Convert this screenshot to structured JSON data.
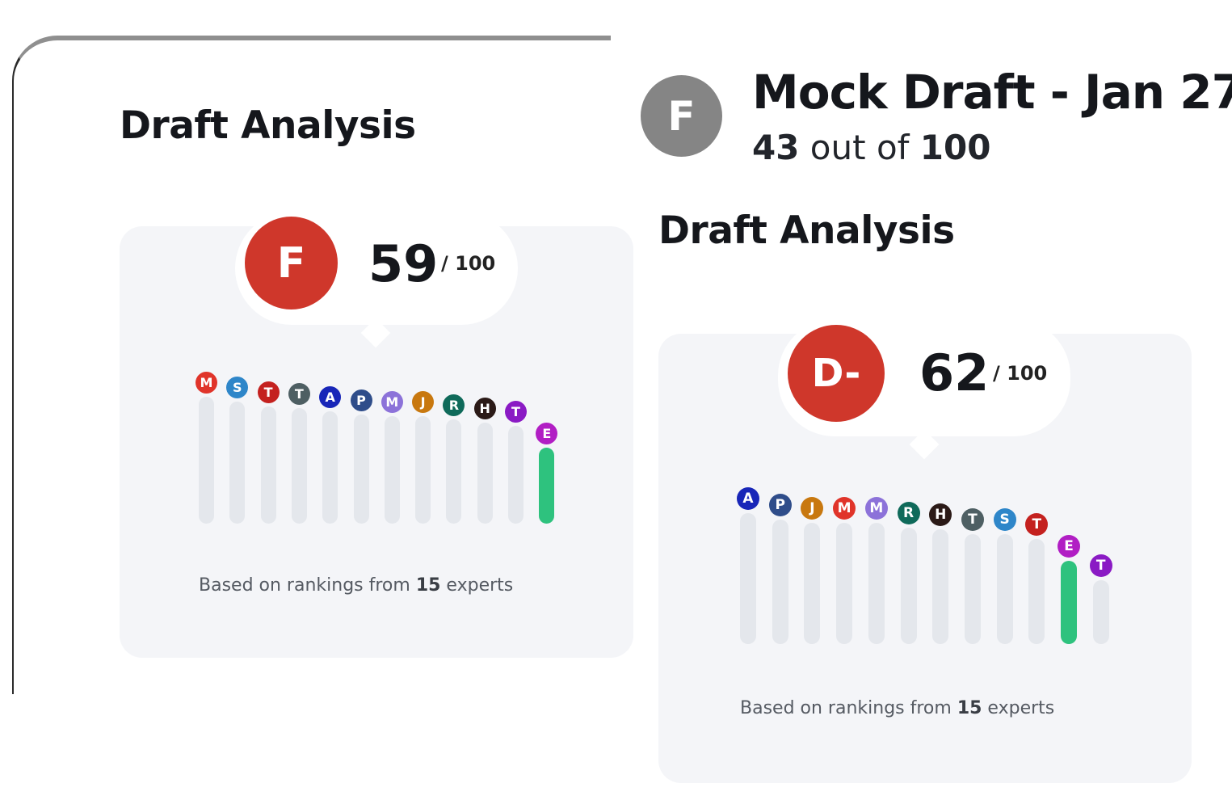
{
  "left_panel": {
    "section_title": "Draft Analysis",
    "grade": "F",
    "score": "59",
    "score_max": "/ 100",
    "footnote_prefix": "Based on rankings from ",
    "footnote_count": "15",
    "footnote_suffix": " experts",
    "bars": [
      {
        "letter": "M",
        "color": "#e0342a",
        "fill": 0
      },
      {
        "letter": "S",
        "color": "#2e86c9",
        "fill": 0
      },
      {
        "letter": "T",
        "color": "#c4211f",
        "fill": 0
      },
      {
        "letter": "T",
        "color": "#4e5f63",
        "fill": 0
      },
      {
        "letter": "A",
        "color": "#1826b8",
        "fill": 0
      },
      {
        "letter": "P",
        "color": "#2f4d8a",
        "fill": 0
      },
      {
        "letter": "M",
        "color": "#8c72d9",
        "fill": 0
      },
      {
        "letter": "J",
        "color": "#c8780f",
        "fill": 0
      },
      {
        "letter": "R",
        "color": "#0f6a5a",
        "fill": 0
      },
      {
        "letter": "H",
        "color": "#2b1a17",
        "fill": 0
      },
      {
        "letter": "T",
        "color": "#8a1ac4",
        "fill": 0
      },
      {
        "letter": "E",
        "color": "#b11ec4",
        "fill": 1
      }
    ]
  },
  "right_panel": {
    "avatar_letter": "F",
    "title": "Mock Draft - Jan 27",
    "sub_score": "43",
    "sub_text": " out of ",
    "sub_max": "100",
    "section_title": "Draft Analysis",
    "grade": "D-",
    "score": "62",
    "score_max": "/ 100",
    "footnote_prefix": "Based on rankings from ",
    "footnote_count": "15",
    "footnote_suffix": " experts",
    "bars": [
      {
        "letter": "A",
        "color": "#1826b8",
        "fill": 0
      },
      {
        "letter": "P",
        "color": "#2f4d8a",
        "fill": 0
      },
      {
        "letter": "J",
        "color": "#c8780f",
        "fill": 0
      },
      {
        "letter": "M",
        "color": "#e0342a",
        "fill": 0
      },
      {
        "letter": "M",
        "color": "#8c72d9",
        "fill": 0
      },
      {
        "letter": "R",
        "color": "#0f6a5a",
        "fill": 0
      },
      {
        "letter": "H",
        "color": "#2b1a17",
        "fill": 0
      },
      {
        "letter": "T",
        "color": "#4e5f63",
        "fill": 0
      },
      {
        "letter": "S",
        "color": "#2e86c9",
        "fill": 0
      },
      {
        "letter": "T",
        "color": "#c4211f",
        "fill": 0
      },
      {
        "letter": "E",
        "color": "#b11ec4",
        "fill": 1
      },
      {
        "letter": "T",
        "color": "#8a1ac4",
        "fill": 0
      }
    ]
  }
}
